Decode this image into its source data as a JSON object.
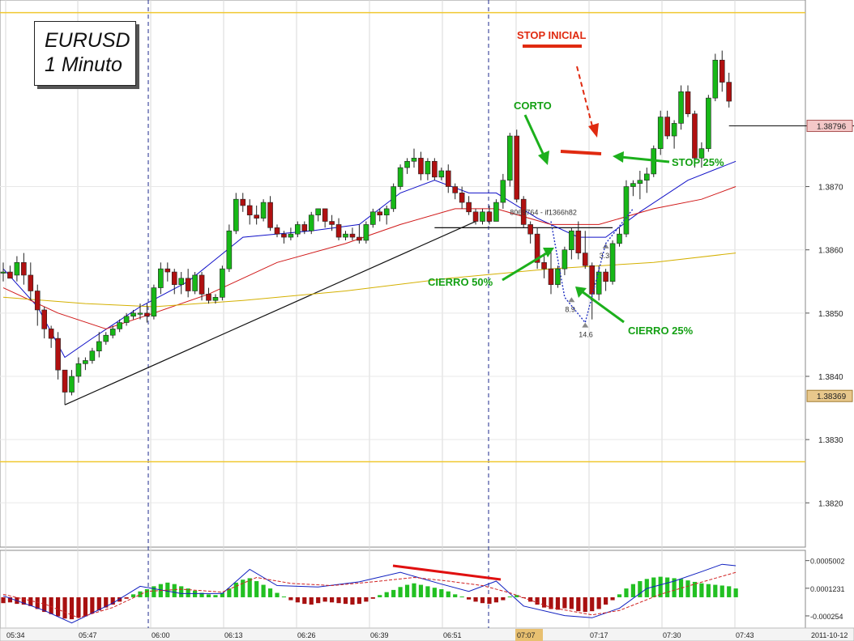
{
  "chart_data": {
    "type": "candlestick",
    "symbol": "EURUSD",
    "timeframe": "1 Minuto",
    "price_axis": {
      "range": [
        1.3813,
        1.38995
      ],
      "ticks": [
        "1.3820",
        "1.3830",
        "1.3840",
        "1.3850",
        "1.3860",
        "1.3870"
      ],
      "tick_values": [
        1.382,
        1.383,
        1.384,
        1.385,
        1.386,
        1.387
      ],
      "current_price": "1.38796",
      "marked_price": "1.38369"
    },
    "time_axis": {
      "labels": [
        "05:34",
        "05:47",
        "06:00",
        "06:13",
        "06:26",
        "06:39",
        "06:51",
        "07:07",
        "07:17",
        "07:30",
        "07:43",
        "2011-10-12"
      ],
      "highlighted_label": "07:07"
    },
    "horizontal_levels": [
      1.38975,
      1.38265
    ],
    "candles": [
      [
        1.38565,
        1.3858,
        1.3855,
        1.38565
      ],
      [
        1.38565,
        1.38575,
        1.38555,
        1.38555
      ],
      [
        1.3856,
        1.3859,
        1.3855,
        1.3858
      ],
      [
        1.3858,
        1.38595,
        1.38545,
        1.3856
      ],
      [
        1.3856,
        1.3858,
        1.3852,
        1.38535
      ],
      [
        1.38535,
        1.38545,
        1.3848,
        1.38505
      ],
      [
        1.38505,
        1.3851,
        1.3846,
        1.38475
      ],
      [
        1.38475,
        1.3848,
        1.38445,
        1.3846
      ],
      [
        1.3846,
        1.3847,
        1.38395,
        1.3841
      ],
      [
        1.3841,
        1.3841,
        1.38355,
        1.38375
      ],
      [
        1.38375,
        1.3841,
        1.3837,
        1.384
      ],
      [
        1.384,
        1.3843,
        1.3839,
        1.3842
      ],
      [
        1.3842,
        1.3843,
        1.3841,
        1.38425
      ],
      [
        1.38425,
        1.38445,
        1.3842,
        1.3844
      ],
      [
        1.3844,
        1.3847,
        1.3843,
        1.38455
      ],
      [
        1.38455,
        1.3847,
        1.3845,
        1.38465
      ],
      [
        1.38465,
        1.3848,
        1.3846,
        1.38475
      ],
      [
        1.38475,
        1.3849,
        1.3847,
        1.38485
      ],
      [
        1.38485,
        1.385,
        1.3848,
        1.38495
      ],
      [
        1.38495,
        1.38505,
        1.3849,
        1.385
      ],
      [
        1.385,
        1.38515,
        1.3849,
        1.385
      ],
      [
        1.385,
        1.38515,
        1.38485,
        1.38495
      ],
      [
        1.38495,
        1.38545,
        1.3849,
        1.3854
      ],
      [
        1.3854,
        1.3858,
        1.3853,
        1.3857
      ],
      [
        1.3857,
        1.3858,
        1.3855,
        1.38565
      ],
      [
        1.38565,
        1.3857,
        1.3853,
        1.38545
      ],
      [
        1.38545,
        1.38565,
        1.3853,
        1.38555
      ],
      [
        1.38555,
        1.3857,
        1.38525,
        1.38535
      ],
      [
        1.38535,
        1.38565,
        1.3853,
        1.3856
      ],
      [
        1.3856,
        1.38565,
        1.3852,
        1.3853
      ],
      [
        1.3853,
        1.3854,
        1.38515,
        1.3852
      ],
      [
        1.3852,
        1.3853,
        1.38515,
        1.38525
      ],
      [
        1.38525,
        1.38575,
        1.3852,
        1.3857
      ],
      [
        1.3857,
        1.3864,
        1.38565,
        1.3863
      ],
      [
        1.3863,
        1.3869,
        1.38625,
        1.3868
      ],
      [
        1.3868,
        1.3869,
        1.3866,
        1.3867
      ],
      [
        1.3867,
        1.3868,
        1.3864,
        1.38655
      ],
      [
        1.38655,
        1.3867,
        1.3864,
        1.3865
      ],
      [
        1.3865,
        1.3868,
        1.38645,
        1.38675
      ],
      [
        1.38675,
        1.38685,
        1.3863,
        1.38635
      ],
      [
        1.38635,
        1.3864,
        1.3862,
        1.38625
      ],
      [
        1.38625,
        1.3863,
        1.3861,
        1.3862
      ],
      [
        1.3862,
        1.38635,
        1.38615,
        1.38625
      ],
      [
        1.38625,
        1.38645,
        1.3862,
        1.3864
      ],
      [
        1.3864,
        1.38645,
        1.38625,
        1.3863
      ],
      [
        1.3863,
        1.3866,
        1.38625,
        1.38655
      ],
      [
        1.38655,
        1.38665,
        1.38645,
        1.38665
      ],
      [
        1.38665,
        1.38665,
        1.38635,
        1.38645
      ],
      [
        1.38645,
        1.38655,
        1.3863,
        1.3864
      ],
      [
        1.3864,
        1.3865,
        1.38615,
        1.3862
      ],
      [
        1.3862,
        1.3863,
        1.38615,
        1.38625
      ],
      [
        1.38625,
        1.38635,
        1.38615,
        1.3862
      ],
      [
        1.3862,
        1.3864,
        1.3861,
        1.38615
      ],
      [
        1.38615,
        1.38645,
        1.3861,
        1.3864
      ],
      [
        1.3864,
        1.38665,
        1.38635,
        1.3866
      ],
      [
        1.3866,
        1.38665,
        1.38645,
        1.38655
      ],
      [
        1.38655,
        1.3867,
        1.3864,
        1.38665
      ],
      [
        1.38665,
        1.38705,
        1.3866,
        1.387
      ],
      [
        1.387,
        1.38735,
        1.38695,
        1.3873
      ],
      [
        1.3873,
        1.38745,
        1.3872,
        1.3874
      ],
      [
        1.3874,
        1.3876,
        1.3873,
        1.38745
      ],
      [
        1.38745,
        1.38755,
        1.3871,
        1.3872
      ],
      [
        1.3872,
        1.38745,
        1.3871,
        1.3874
      ],
      [
        1.3874,
        1.38745,
        1.3871,
        1.38715
      ],
      [
        1.38715,
        1.3873,
        1.3871,
        1.38725
      ],
      [
        1.38725,
        1.38735,
        1.3869,
        1.387
      ],
      [
        1.387,
        1.38705,
        1.3868,
        1.3869
      ],
      [
        1.3869,
        1.387,
        1.38665,
        1.38675
      ],
      [
        1.38675,
        1.38685,
        1.38655,
        1.3866
      ],
      [
        1.3866,
        1.38665,
        1.3864,
        1.38645
      ],
      [
        1.38645,
        1.38665,
        1.3864,
        1.3866
      ],
      [
        1.3866,
        1.3867,
        1.3864,
        1.38645
      ],
      [
        1.38645,
        1.3868,
        1.38645,
        1.38675
      ],
      [
        1.38675,
        1.3872,
        1.38665,
        1.3871
      ],
      [
        1.3871,
        1.38785,
        1.387,
        1.3878
      ],
      [
        1.3878,
        1.3879,
        1.38675,
        1.3868
      ],
      [
        1.3868,
        1.38685,
        1.38635,
        1.3864
      ],
      [
        1.3864,
        1.38645,
        1.3861,
        1.38625
      ],
      [
        1.38625,
        1.38635,
        1.3857,
        1.3858
      ],
      [
        1.3858,
        1.38595,
        1.38555,
        1.3857
      ],
      [
        1.3857,
        1.386,
        1.3853,
        1.38545
      ],
      [
        1.38545,
        1.38575,
        1.3854,
        1.3857
      ],
      [
        1.3857,
        1.38605,
        1.3856,
        1.386
      ],
      [
        1.386,
        1.38635,
        1.38585,
        1.3863
      ],
      [
        1.3863,
        1.38645,
        1.38585,
        1.38595
      ],
      [
        1.38595,
        1.3863,
        1.3857,
        1.38575
      ],
      [
        1.38575,
        1.3858,
        1.3849,
        1.3853
      ],
      [
        1.3853,
        1.38575,
        1.3852,
        1.38565
      ],
      [
        1.38565,
        1.3857,
        1.38535,
        1.3855
      ],
      [
        1.3855,
        1.38615,
        1.38545,
        1.3861
      ],
      [
        1.3861,
        1.38635,
        1.38605,
        1.38625
      ],
      [
        1.38625,
        1.3871,
        1.3862,
        1.387
      ],
      [
        1.387,
        1.3871,
        1.38685,
        1.38705
      ],
      [
        1.38705,
        1.38725,
        1.3868,
        1.3871
      ],
      [
        1.3871,
        1.3873,
        1.3869,
        1.3872
      ],
      [
        1.3872,
        1.38765,
        1.38715,
        1.3876
      ],
      [
        1.3876,
        1.3882,
        1.3875,
        1.3881
      ],
      [
        1.3881,
        1.3882,
        1.38775,
        1.3878
      ],
      [
        1.3878,
        1.38805,
        1.3876,
        1.388
      ],
      [
        1.388,
        1.3886,
        1.3879,
        1.3885
      ],
      [
        1.3885,
        1.3886,
        1.3881,
        1.38815
      ],
      [
        1.38815,
        1.3882,
        1.3873,
        1.38745
      ],
      [
        1.38745,
        1.3877,
        1.3873,
        1.3876
      ],
      [
        1.3876,
        1.38845,
        1.38755,
        1.3884
      ],
      [
        1.3884,
        1.3891,
        1.38835,
        1.389
      ],
      [
        1.389,
        1.38915,
        1.3885,
        1.38865
      ],
      [
        1.38865,
        1.3888,
        1.38825,
        1.38835
      ]
    ],
    "moving_averages": [
      {
        "color": "#1010c8",
        "points": [
          [
            0,
            1.3857
          ],
          [
            5,
            1.3851
          ],
          [
            9,
            1.3843
          ],
          [
            13,
            1.3846
          ],
          [
            20,
            1.3851
          ],
          [
            27,
            1.3855
          ],
          [
            35,
            1.3862
          ],
          [
            45,
            1.3863
          ],
          [
            52,
            1.3864
          ],
          [
            58,
            1.3869
          ],
          [
            63,
            1.3871
          ],
          [
            68,
            1.3869
          ],
          [
            72,
            1.3869
          ],
          [
            78,
            1.3865
          ],
          [
            84,
            1.3862
          ],
          [
            88,
            1.3862
          ],
          [
            93,
            1.3866
          ],
          [
            100,
            1.3871
          ],
          [
            107,
            1.3874
          ]
        ]
      },
      {
        "color": "#d01818",
        "points": [
          [
            0,
            1.3854
          ],
          [
            8,
            1.385
          ],
          [
            15,
            1.38475
          ],
          [
            22,
            1.385
          ],
          [
            30,
            1.3853
          ],
          [
            40,
            1.3858
          ],
          [
            50,
            1.3861
          ],
          [
            58,
            1.3864
          ],
          [
            66,
            1.38665
          ],
          [
            72,
            1.38665
          ],
          [
            80,
            1.3864
          ],
          [
            87,
            1.3864
          ],
          [
            95,
            1.38665
          ],
          [
            102,
            1.3868
          ],
          [
            107,
            1.387
          ]
        ]
      },
      {
        "color": "#d4b000",
        "points": [
          [
            0,
            1.38525
          ],
          [
            12,
            1.38515
          ],
          [
            22,
            1.3851
          ],
          [
            35,
            1.3852
          ],
          [
            50,
            1.38535
          ],
          [
            65,
            1.38555
          ],
          [
            80,
            1.3857
          ],
          [
            95,
            1.3858
          ],
          [
            107,
            1.38595
          ]
        ]
      }
    ],
    "macd": {
      "ticks": [
        "0.0005002",
        "0.0001231",
        "-0.000254"
      ],
      "tick_values": [
        0.0005002,
        0.0001231,
        -0.000254
      ],
      "range": [
        -0.00042,
        0.00064
      ],
      "histogram": [
        -8e-05,
        -7e-05,
        -9e-05,
        -0.0001,
        -0.00012,
        -0.00016,
        -0.0002,
        -0.00023,
        -0.00026,
        -0.00029,
        -0.0003,
        -0.00028,
        -0.00026,
        -0.00022,
        -0.00018,
        -0.00014,
        -0.0001,
        -6e-05,
        -2e-05,
        4e-05,
        8e-05,
        0.00011,
        0.00015,
        0.00018,
        0.0002,
        0.00018,
        0.00015,
        0.00012,
        9e-05,
        6e-05,
        4e-05,
        3e-05,
        6e-05,
        0.00012,
        0.0002,
        0.00024,
        0.00026,
        0.00022,
        0.00017,
        0.00012,
        6e-05,
        1e-05,
        -4e-05,
        -7e-05,
        -9e-05,
        -0.0001,
        -8e-05,
        -6e-05,
        -7e-05,
        -8e-05,
        -9e-05,
        -0.0001,
        -9e-05,
        -6e-05,
        -2e-05,
        3e-05,
        7e-05,
        0.0001,
        0.00014,
        0.00017,
        0.00019,
        0.00017,
        0.00015,
        0.00013,
        0.00011,
        8e-05,
        4e-05,
        1e-05,
        -3e-05,
        -6e-05,
        -8e-05,
        -9e-05,
        -7e-05,
        -4e-05,
        1e-05,
        3e-05,
        -1e-05,
        -6e-05,
        -0.0001,
        -0.00014,
        -0.00016,
        -0.00017,
        -0.00015,
        -0.00016,
        -0.00019,
        -0.0002,
        -0.00019,
        -0.00016,
        -0.0001,
        -4e-05,
        4e-05,
        0.00012,
        0.00018,
        0.00022,
        0.00025,
        0.00027,
        0.00028,
        0.00027,
        0.00026,
        0.00025,
        0.00023,
        0.00021,
        0.00019,
        0.00018,
        0.00017,
        0.00016,
        0.00015,
        0.00012
      ],
      "macd_line": [
        [
          0,
          2e-05
        ],
        [
          6,
          -0.00018
        ],
        [
          10,
          -0.00035
        ],
        [
          16,
          -8e-05
        ],
        [
          20,
          0.00015
        ],
        [
          26,
          5e-05
        ],
        [
          32,
          5e-05
        ],
        [
          36,
          0.00038
        ],
        [
          40,
          0.00016
        ],
        [
          46,
          0.00014
        ],
        [
          52,
          0.00021
        ],
        [
          58,
          0.00034
        ],
        [
          64,
          0.00018
        ],
        [
          68,
          8e-05
        ],
        [
          72,
          0.00022
        ],
        [
          76,
          -0.00012
        ],
        [
          82,
          -0.00025
        ],
        [
          86,
          -0.00028
        ],
        [
          90,
          -0.00015
        ],
        [
          94,
          0.00012
        ],
        [
          98,
          0.00022
        ],
        [
          102,
          0.00035
        ],
        [
          105,
          0.00045
        ],
        [
          107,
          0.00043
        ]
      ],
      "signal_line": [
        [
          0,
          4e-05
        ],
        [
          6,
          -9e-05
        ],
        [
          11,
          -0.00028
        ],
        [
          16,
          -0.00014
        ],
        [
          21,
          8e-05
        ],
        [
          26,
          0.00011
        ],
        [
          32,
          7e-05
        ],
        [
          37,
          0.00027
        ],
        [
          42,
          0.00019
        ],
        [
          48,
          0.00016
        ],
        [
          54,
          0.00021
        ],
        [
          60,
          0.00027
        ],
        [
          65,
          0.00022
        ],
        [
          70,
          0.00016
        ],
        [
          74,
          6e-05
        ],
        [
          80,
          -0.00014
        ],
        [
          86,
          -0.00024
        ],
        [
          90,
          -0.00018
        ],
        [
          96,
          4e-05
        ],
        [
          101,
          0.00018
        ],
        [
          107,
          0.00034
        ]
      ]
    },
    "trendlines": [
      {
        "from": [
          9,
          1.38355
        ],
        "to": [
          69,
          1.38645
        ],
        "color": "#111111"
      },
      {
        "from": [
          63,
          1.38635
        ],
        "to": [
          89,
          1.38635
        ],
        "color": "#111111"
      }
    ],
    "trade_markers": [
      {
        "label": "8.9",
        "candle": 83,
        "price": 1.38525
      },
      {
        "label": "14.6",
        "candle": 85,
        "price": 1.38485
      },
      {
        "label": "3.3",
        "candle": 88,
        "price": 1.3861
      }
    ],
    "order_label": "8069764 - if1366h82",
    "annotations": [
      {
        "text": "STOP INICIAL",
        "color": "#e02a10"
      },
      {
        "text": "CORTO",
        "color": "#14a014"
      },
      {
        "text": "STOP 25%",
        "color": "#14a014"
      },
      {
        "text": "CIERRO 50%",
        "color": "#14a014"
      },
      {
        "text": "CIERRO 25%",
        "color": "#14a014"
      }
    ],
    "colors": {
      "bull": "#17b817",
      "bear": "#b01010",
      "grid": "#d8d8d8",
      "session_line": "#1c2a8c",
      "level_line": "#f0c830",
      "current_price_bg": "#f4c8c8",
      "marked_price_bg": "#e8c88c"
    }
  }
}
